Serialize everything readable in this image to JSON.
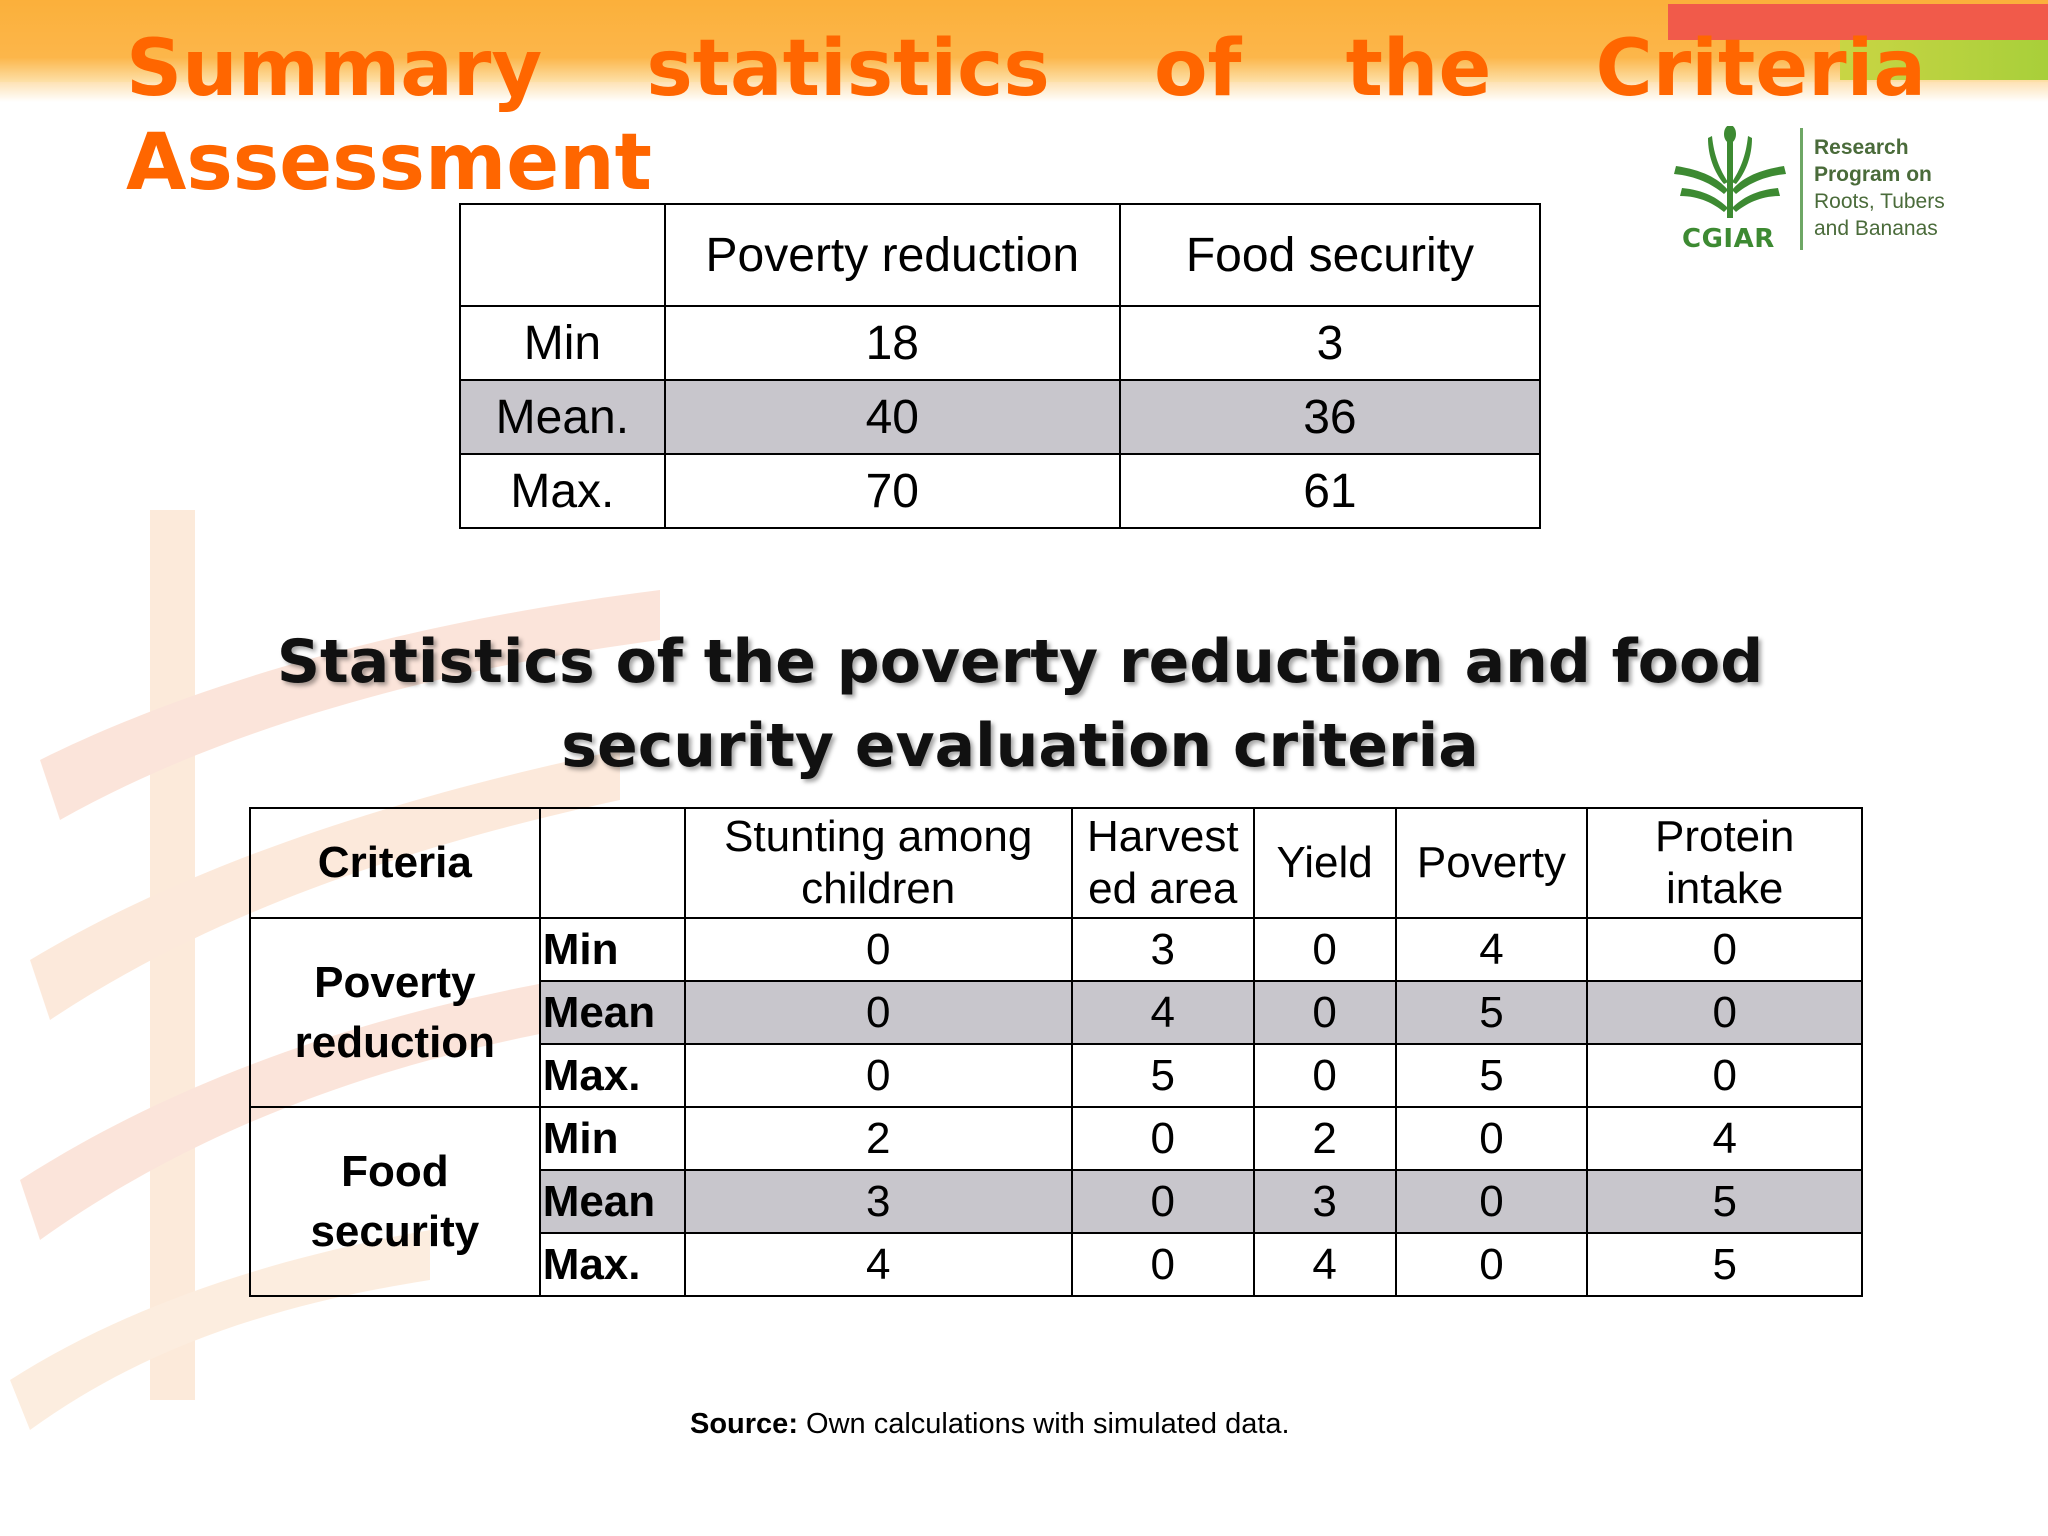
{
  "title": {
    "words": [
      "Summary",
      "statistics",
      "of",
      "the",
      "Criteria"
    ],
    "line2": "Assessment",
    "color": "#ff6600"
  },
  "logo": {
    "name": "CGIAR",
    "lines": [
      "Research",
      "Program on",
      "Roots, Tubers",
      "and Bananas"
    ],
    "icon": "wheat-sheaf-icon",
    "color": "#3d8a32"
  },
  "summary_table": {
    "columns": [
      "",
      "Poverty reduction",
      "Food security"
    ],
    "rows": [
      {
        "label": "Min",
        "poverty_reduction": "18",
        "food_security": "3",
        "shaded": false
      },
      {
        "label": "Mean.",
        "poverty_reduction": "40",
        "food_security": "36",
        "shaded": true
      },
      {
        "label": "Max.",
        "poverty_reduction": "70",
        "food_security": "61",
        "shaded": false
      }
    ]
  },
  "criteria_heading": {
    "line1": "Statistics of the poverty reduction and food",
    "line2": "security evaluation criteria"
  },
  "criteria_table": {
    "header": {
      "criteria": "Criteria",
      "blank": "",
      "columns": [
        [
          "Stunting among",
          "children"
        ],
        [
          "Harvest",
          "ed area"
        ],
        [
          "Yield"
        ],
        [
          "Poverty"
        ],
        [
          "Protein",
          "intake"
        ]
      ]
    },
    "groups": [
      {
        "name": [
          "Poverty",
          "reduction"
        ],
        "rows": [
          {
            "stat": "Min",
            "values": [
              "0",
              "3",
              "0",
              "4",
              "0"
            ]
          },
          {
            "stat": "Mean",
            "values": [
              "0",
              "4",
              "0",
              "5",
              "0"
            ]
          },
          {
            "stat": "Max.",
            "values": [
              "0",
              "5",
              "0",
              "5",
              "0"
            ]
          }
        ]
      },
      {
        "name": [
          "Food",
          "security"
        ],
        "rows": [
          {
            "stat": "Min",
            "values": [
              "2",
              "0",
              "2",
              "0",
              "4"
            ]
          },
          {
            "stat": "Mean",
            "values": [
              "3",
              "0",
              "3",
              "0",
              "5"
            ]
          },
          {
            "stat": "Max.",
            "values": [
              "4",
              "0",
              "4",
              "0",
              "5"
            ]
          }
        ]
      }
    ],
    "shade_color": "#c8c6cc"
  },
  "source": {
    "label": "Source:",
    "text": " Own calculations with simulated data."
  }
}
